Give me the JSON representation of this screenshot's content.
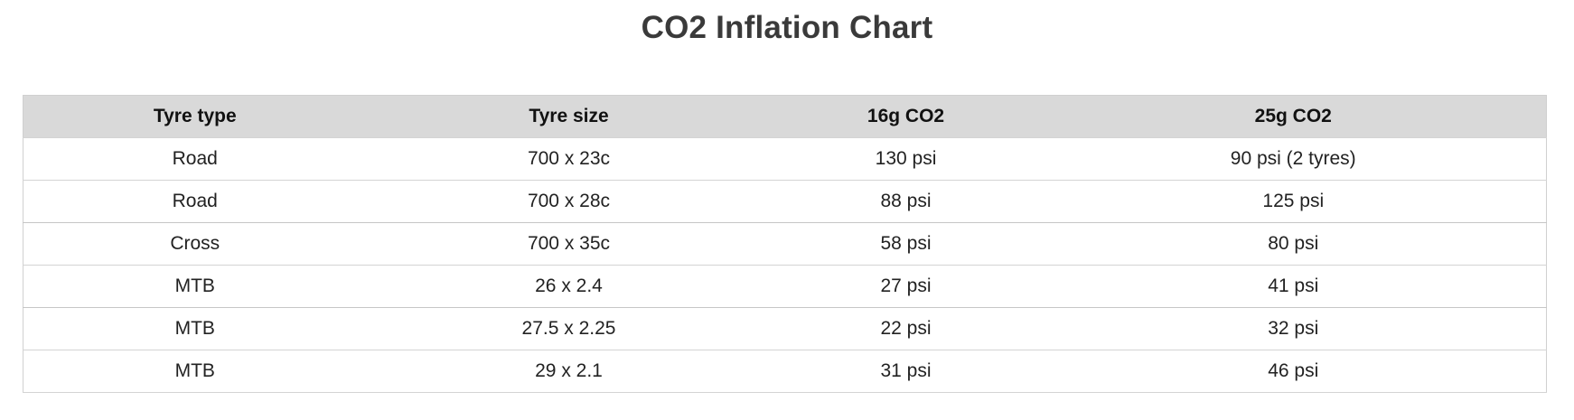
{
  "title": "CO2 Inflation Chart",
  "table": {
    "headers": [
      "Tyre type",
      "Tyre size",
      "16g CO2",
      "25g CO2"
    ],
    "rows": [
      [
        "Road",
        "700 x 23c",
        "130 psi",
        "90 psi (2 tyres)"
      ],
      [
        "Road",
        "700 x 28c",
        "88 psi",
        "125 psi"
      ],
      [
        "Cross",
        "700 x 35c",
        "58 psi",
        "80 psi"
      ],
      [
        "MTB",
        "26 x 2.4",
        "27 psi",
        "41 psi"
      ],
      [
        "MTB",
        "27.5 x 2.25",
        "22 psi",
        "32 psi"
      ],
      [
        "MTB",
        "29 x 2.1",
        "31 psi",
        "46 psi"
      ]
    ]
  }
}
